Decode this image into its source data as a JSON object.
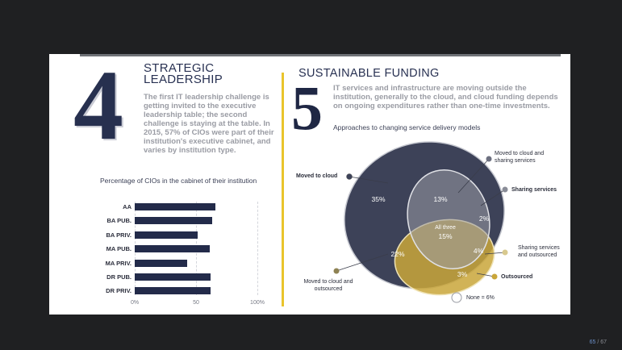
{
  "left": {
    "number": "4",
    "title_line1": "STRATEGIC",
    "title_line2": "LEADERSHIP",
    "body": "The first IT leadership challenge is getting invited to the executive leadership table; the second challenge is staying at the table. In 2015, 57% of CIOs were part of their institution's executive cabinet, and varies by institution type."
  },
  "chart_data": {
    "type": "bar",
    "title": "Percentage of CIOs in the cabinet of their institution",
    "categories": [
      "AA",
      "BA PUB.",
      "BA PRIV.",
      "MA PUB.",
      "MA PRIV.",
      "DR PUB.",
      "DR PRIV."
    ],
    "values": [
      66,
      63,
      51,
      61,
      43,
      62,
      62
    ],
    "xlim": [
      0,
      100
    ],
    "ticks": [
      "0%",
      "50",
      "100%"
    ],
    "grid": true,
    "orientation": "horizontal",
    "bar_color": "#232b4a"
  },
  "right": {
    "number": "5",
    "title": "SUSTAINABLE FUNDING",
    "body": "IT services and infrastructure are moving outside the institution, generally to the cloud, and cloud funding depends on ongoing expenditures rather than one-time investments.",
    "caption": "Approaches to changing service delivery models",
    "venn": {
      "labels": {
        "moved_to_cloud": "Moved to cloud",
        "moved_cloud_sharing": "Moved to cloud and sharing services",
        "sharing_services": "Sharing services",
        "sharing_outsourced": "Sharing services and outsourced",
        "outsourced": "Outsourced",
        "moved_cloud_outsourced": "Moved to cloud and outsourced",
        "none": "None = 6%"
      },
      "values": {
        "cloud_only": "35%",
        "cloud_sharing": "13%",
        "sharing_only": "2%",
        "all_three_label": "All three",
        "all_three": "15%",
        "cloud_outsourced": "22%",
        "sharing_outsourced": "4%",
        "outsourced_only": "3%"
      },
      "colors": {
        "cloud": "#3d4258",
        "sharing": "#8a8d98",
        "outsourced": "#c9a63a"
      }
    }
  },
  "page": {
    "current": "65",
    "total": "/ 67"
  }
}
